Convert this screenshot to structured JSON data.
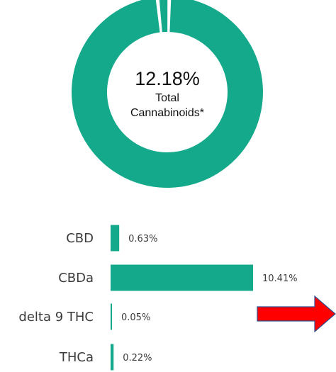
{
  "colors": {
    "teal": "#14a98b",
    "arrow_fill": "#ff0000",
    "arrow_stroke": "#2f4f8f",
    "background": "#ffffff"
  },
  "chart_data": [
    {
      "type": "pie",
      "subtype": "donut",
      "center_value": "12.18%",
      "center_label_lines": [
        "Total",
        "Cannabinoids*"
      ],
      "slices": [
        {
          "value": 0.02
        },
        {
          "value": 0.98
        }
      ]
    },
    {
      "type": "bar",
      "orientation": "horizontal",
      "categories": [
        "CBD",
        "CBDa",
        "delta 9 THC",
        "THCa"
      ],
      "values": [
        0.63,
        10.41,
        0.05,
        0.22
      ],
      "value_labels": [
        "0.63%",
        "10.41%",
        "0.05%",
        "0.22%"
      ],
      "xlim": [
        0,
        10.41
      ],
      "grid": false,
      "legend": "none"
    }
  ],
  "annotations": {
    "arrow_icon": "right-arrow-icon"
  }
}
